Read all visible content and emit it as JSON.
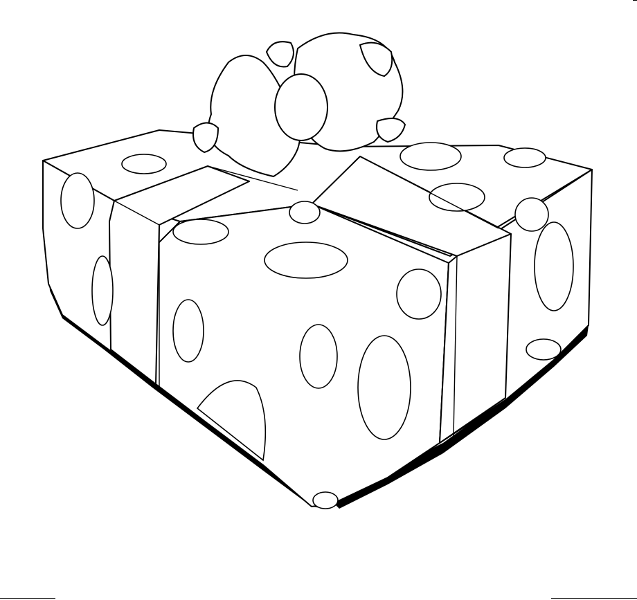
{
  "colors": {
    "background": "#ffffff",
    "outline": "#000000",
    "fill": "#ffffff"
  },
  "picture": {
    "subject_icon": "gift-box-icon",
    "style": "black line-art coloring page",
    "polka_dots": true
  }
}
